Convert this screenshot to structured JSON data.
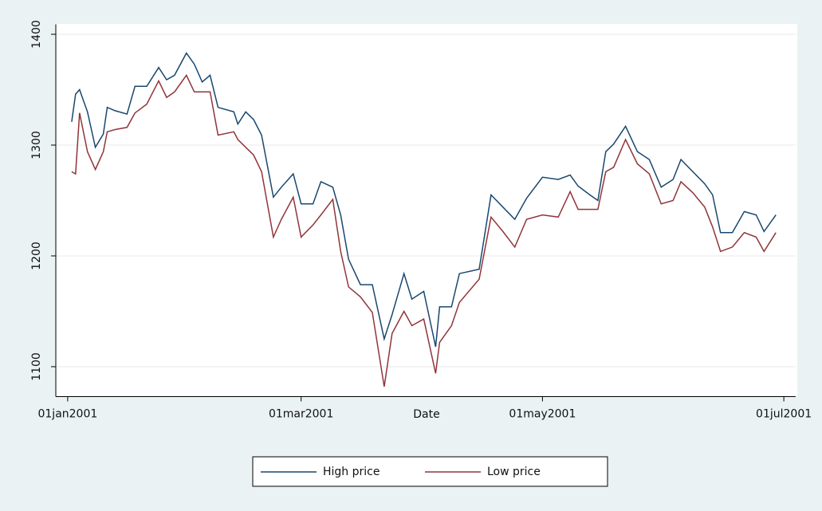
{
  "chart_data": {
    "type": "line",
    "xlabel": "Date",
    "x": [
      "2001-01-02",
      "2001-01-03",
      "2001-01-04",
      "2001-01-06",
      "2001-01-08",
      "2001-01-10",
      "2001-01-11",
      "2001-01-13",
      "2001-01-16",
      "2001-01-18",
      "2001-01-21",
      "2001-01-24",
      "2001-01-26",
      "2001-01-28",
      "2001-01-31",
      "2001-02-02",
      "2001-02-04",
      "2001-02-06",
      "2001-02-08",
      "2001-02-12",
      "2001-02-13",
      "2001-02-15",
      "2001-02-17",
      "2001-02-19",
      "2001-02-22",
      "2001-02-24",
      "2001-02-27",
      "2001-03-01",
      "2001-03-04",
      "2001-03-06",
      "2001-03-09",
      "2001-03-11",
      "2001-03-13",
      "2001-03-16",
      "2001-03-19",
      "2001-03-22",
      "2001-03-24",
      "2001-03-27",
      "2001-03-29",
      "2001-04-01",
      "2001-04-04",
      "2001-04-05",
      "2001-04-08",
      "2001-04-10",
      "2001-04-15",
      "2001-04-18",
      "2001-04-21",
      "2001-04-24",
      "2001-04-27",
      "2001-05-01",
      "2001-05-05",
      "2001-05-08",
      "2001-05-10",
      "2001-05-13",
      "2001-05-15",
      "2001-05-17",
      "2001-05-19",
      "2001-05-22",
      "2001-05-25",
      "2001-05-28",
      "2001-05-31",
      "2001-06-03",
      "2001-06-05",
      "2001-06-08",
      "2001-06-11",
      "2001-06-13",
      "2001-06-15",
      "2001-06-18",
      "2001-06-21",
      "2001-06-24",
      "2001-06-26",
      "2001-06-29"
    ],
    "series": [
      {
        "name": "High price",
        "color": "#1a476f",
        "values": [
          1321,
          1346,
          1350,
          1330,
          1298,
          1310,
          1334,
          1331,
          1328,
          1353,
          1353,
          1370,
          1359,
          1363,
          1383,
          1373,
          1357,
          1363,
          1334,
          1330,
          1319,
          1330,
          1323,
          1309,
          1253,
          1262,
          1274,
          1247,
          1247,
          1267,
          1262,
          1237,
          1197,
          1174,
          1174,
          1125,
          1147,
          1184,
          1161,
          1168,
          1118,
          1154,
          1154,
          1184,
          1188,
          1255,
          1244,
          1233,
          1252,
          1271,
          1269,
          1273,
          1263,
          1255,
          1250,
          1294,
          1301,
          1317,
          1294,
          1287,
          1262,
          1269,
          1287,
          1276,
          1265,
          1255,
          1221,
          1221,
          1240,
          1237,
          1222,
          1237
        ]
      },
      {
        "name": "Low price",
        "color": "#90353b",
        "values": [
          1276,
          1274,
          1329,
          1294,
          1278,
          1294,
          1312,
          1314,
          1316,
          1329,
          1337,
          1358,
          1343,
          1348,
          1363,
          1348,
          1348,
          1348,
          1309,
          1312,
          1305,
          1298,
          1291,
          1276,
          1217,
          1233,
          1253,
          1217,
          1228,
          1237,
          1251,
          1204,
          1172,
          1163,
          1149,
          1082,
          1130,
          1150,
          1137,
          1143,
          1094,
          1122,
          1137,
          1158,
          1179,
          1235,
          1222,
          1208,
          1233,
          1237,
          1235,
          1258,
          1242,
          1242,
          1242,
          1276,
          1280,
          1305,
          1283,
          1274,
          1247,
          1250,
          1267,
          1257,
          1244,
          1226,
          1204,
          1208,
          1221,
          1217,
          1204,
          1221
        ]
      }
    ],
    "xlim": [
      "2000-12-29",
      "2001-07-04"
    ],
    "xticks": [
      {
        "value": "2001-01-01",
        "label": "01jan2001"
      },
      {
        "value": "2001-03-01",
        "label": "01mar2001"
      },
      {
        "value": "2001-05-01",
        "label": "01may2001"
      },
      {
        "value": "2001-07-01",
        "label": "01jul2001"
      }
    ],
    "ylim": [
      1073,
      1409
    ],
    "yticks": [
      1100,
      1200,
      1300,
      1400
    ],
    "grid": true,
    "legend": "bottom"
  }
}
